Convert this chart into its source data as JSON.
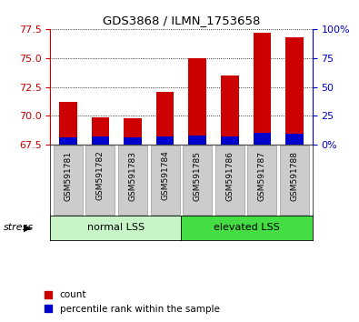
{
  "title": "GDS3868 / ILMN_1753658",
  "categories": [
    "GSM591781",
    "GSM591782",
    "GSM591783",
    "GSM591784",
    "GSM591785",
    "GSM591786",
    "GSM591787",
    "GSM591788"
  ],
  "red_values": [
    71.2,
    69.9,
    69.8,
    72.1,
    75.0,
    73.5,
    77.2,
    76.8
  ],
  "blue_heights": [
    0.65,
    0.72,
    0.65,
    0.7,
    0.8,
    0.75,
    1.05,
    1.0
  ],
  "ylim_left": [
    67.5,
    77.5
  ],
  "ylim_right": [
    0,
    100
  ],
  "yticks_left": [
    67.5,
    70.0,
    72.5,
    75.0,
    77.5
  ],
  "yticks_right": [
    0,
    25,
    50,
    75,
    100
  ],
  "ytick_labels_right": [
    "0%",
    "25",
    "50",
    "75",
    "100%"
  ],
  "bar_width": 0.55,
  "bar_color_red": "#cc0000",
  "bar_color_blue": "#0000cc",
  "base_value": 67.5,
  "normal_lss_color": "#c8f5c8",
  "elevated_lss_color": "#44dd44",
  "legend_items": [
    "count",
    "percentile rank within the sample"
  ],
  "stress_label": "stress"
}
